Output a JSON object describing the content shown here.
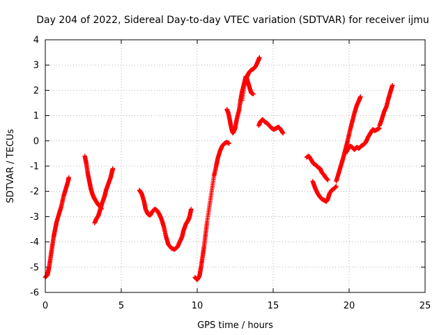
{
  "chart_data": {
    "type": "scatter",
    "title": "Day 204 of 2022, Sidereal Day-to-day VTEC variation (SDTVAR) for receiver ijmu",
    "xlabel": "GPS time / hours",
    "ylabel": "SDTVAR / TECUs",
    "xlim": [
      0,
      25
    ],
    "ylim": [
      -6,
      4
    ],
    "xticks": [
      0,
      5,
      10,
      15,
      20,
      25
    ],
    "yticks": [
      -6,
      -5,
      -4,
      -3,
      -2,
      -1,
      0,
      1,
      2,
      3,
      4
    ],
    "grid": true,
    "marker": "+",
    "color": "#ff0000",
    "series": [
      {
        "name": "ijmu",
        "segments": [
          [
            [
              0.0,
              -5.4
            ],
            [
              0.15,
              -5.3
            ],
            [
              0.25,
              -5.0
            ],
            [
              0.35,
              -4.6
            ],
            [
              0.45,
              -4.2
            ],
            [
              0.55,
              -3.8
            ],
            [
              0.65,
              -3.5
            ],
            [
              0.75,
              -3.2
            ],
            [
              0.9,
              -2.9
            ],
            [
              1.05,
              -2.6
            ],
            [
              1.2,
              -2.2
            ],
            [
              1.35,
              -1.9
            ],
            [
              1.5,
              -1.6
            ],
            [
              1.55,
              -1.45
            ]
          ],
          [
            [
              2.6,
              -0.6
            ],
            [
              2.7,
              -0.9
            ],
            [
              2.8,
              -1.3
            ],
            [
              2.9,
              -1.6
            ],
            [
              3.0,
              -1.9
            ],
            [
              3.1,
              -2.1
            ],
            [
              3.2,
              -2.25
            ],
            [
              3.3,
              -2.35
            ],
            [
              3.45,
              -2.5
            ],
            [
              3.6,
              -2.6
            ],
            [
              3.7,
              -2.7
            ]
          ],
          [
            [
              3.25,
              -3.25
            ],
            [
              3.35,
              -3.1
            ],
            [
              3.5,
              -2.95
            ],
            [
              3.6,
              -2.75
            ],
            [
              3.75,
              -2.45
            ],
            [
              3.9,
              -2.2
            ],
            [
              4.0,
              -1.95
            ],
            [
              4.15,
              -1.7
            ],
            [
              4.3,
              -1.45
            ],
            [
              4.4,
              -1.2
            ],
            [
              4.45,
              -1.1
            ]
          ],
          [
            [
              6.2,
              -1.95
            ],
            [
              6.35,
              -2.1
            ],
            [
              6.5,
              -2.4
            ],
            [
              6.6,
              -2.7
            ],
            [
              6.75,
              -2.9
            ],
            [
              6.9,
              -2.95
            ],
            [
              7.05,
              -2.8
            ],
            [
              7.2,
              -2.7
            ],
            [
              7.35,
              -2.75
            ],
            [
              7.5,
              -2.9
            ],
            [
              7.65,
              -3.1
            ],
            [
              7.8,
              -3.4
            ],
            [
              7.95,
              -3.8
            ],
            [
              8.1,
              -4.1
            ],
            [
              8.3,
              -4.25
            ],
            [
              8.5,
              -4.3
            ],
            [
              8.7,
              -4.2
            ],
            [
              8.85,
              -4.0
            ],
            [
              9.0,
              -3.8
            ],
            [
              9.1,
              -3.55
            ],
            [
              9.25,
              -3.3
            ],
            [
              9.4,
              -3.15
            ],
            [
              9.5,
              -3.0
            ],
            [
              9.6,
              -2.7
            ]
          ],
          [
            [
              9.85,
              -5.4
            ],
            [
              10.0,
              -5.5
            ],
            [
              10.15,
              -5.35
            ],
            [
              10.25,
              -5.0
            ],
            [
              10.35,
              -4.6
            ],
            [
              10.45,
              -4.2
            ],
            [
              10.55,
              -3.7
            ],
            [
              10.65,
              -3.2
            ],
            [
              10.8,
              -2.6
            ],
            [
              10.95,
              -2.0
            ],
            [
              11.1,
              -1.4
            ],
            [
              11.25,
              -1.0
            ],
            [
              11.35,
              -0.7
            ],
            [
              11.5,
              -0.4
            ],
            [
              11.65,
              -0.2
            ],
            [
              11.8,
              -0.1
            ],
            [
              11.95,
              -0.05
            ],
            [
              12.1,
              -0.1
            ]
          ],
          [
            [
              11.95,
              1.25
            ],
            [
              12.05,
              1.1
            ],
            [
              12.15,
              0.8
            ],
            [
              12.25,
              0.5
            ],
            [
              12.35,
              0.3
            ],
            [
              12.5,
              0.5
            ],
            [
              12.6,
              0.85
            ],
            [
              12.75,
              1.2
            ],
            [
              12.85,
              1.6
            ],
            [
              12.95,
              1.95
            ],
            [
              13.1,
              2.3
            ],
            [
              13.2,
              2.55
            ],
            [
              13.3,
              2.4
            ],
            [
              13.45,
              2.1
            ],
            [
              13.55,
              1.9
            ],
            [
              13.7,
              1.85
            ]
          ],
          [
            [
              12.95,
              1.6
            ],
            [
              13.1,
              2.2
            ],
            [
              13.25,
              2.5
            ],
            [
              13.4,
              2.7
            ],
            [
              13.55,
              2.8
            ],
            [
              13.7,
              2.85
            ],
            [
              13.85,
              2.95
            ],
            [
              14.0,
              3.15
            ],
            [
              14.1,
              3.3
            ]
          ],
          [
            [
              14.05,
              0.6
            ],
            [
              14.15,
              0.75
            ],
            [
              14.3,
              0.85
            ],
            [
              14.45,
              0.75
            ],
            [
              14.6,
              0.7
            ],
            [
              14.75,
              0.6
            ],
            [
              14.9,
              0.5
            ],
            [
              15.05,
              0.45
            ],
            [
              15.2,
              0.5
            ],
            [
              15.35,
              0.55
            ],
            [
              15.5,
              0.45
            ],
            [
              15.65,
              0.3
            ]
          ],
          [
            [
              17.2,
              -0.65
            ],
            [
              17.35,
              -0.6
            ],
            [
              17.5,
              -0.75
            ],
            [
              17.65,
              -0.9
            ],
            [
              17.8,
              -0.95
            ],
            [
              17.95,
              -1.05
            ],
            [
              18.1,
              -1.1
            ],
            [
              18.2,
              -1.25
            ],
            [
              18.35,
              -1.35
            ],
            [
              18.45,
              -1.45
            ],
            [
              18.6,
              -1.55
            ]
          ],
          [
            [
              17.6,
              -1.6
            ],
            [
              17.75,
              -1.85
            ],
            [
              17.9,
              -2.05
            ],
            [
              18.05,
              -2.2
            ],
            [
              18.2,
              -2.3
            ],
            [
              18.35,
              -2.35
            ],
            [
              18.5,
              -2.4
            ],
            [
              18.6,
              -2.3
            ],
            [
              18.7,
              -2.1
            ],
            [
              18.85,
              -1.95
            ],
            [
              19.0,
              -1.9
            ],
            [
              19.15,
              -1.8
            ]
          ],
          [
            [
              19.15,
              -1.6
            ],
            [
              19.3,
              -1.3
            ],
            [
              19.45,
              -1.0
            ],
            [
              19.6,
              -0.7
            ],
            [
              19.75,
              -0.35
            ],
            [
              19.9,
              0.0
            ],
            [
              20.05,
              0.4
            ],
            [
              20.2,
              0.75
            ],
            [
              20.35,
              1.1
            ],
            [
              20.5,
              1.4
            ],
            [
              20.65,
              1.6
            ],
            [
              20.75,
              1.75
            ]
          ],
          [
            [
              19.75,
              -0.5
            ],
            [
              19.9,
              -0.35
            ],
            [
              20.05,
              -0.2
            ],
            [
              20.2,
              -0.25
            ],
            [
              20.35,
              -0.35
            ],
            [
              20.5,
              -0.25
            ],
            [
              20.65,
              -0.3
            ],
            [
              20.8,
              -0.2
            ],
            [
              20.95,
              -0.15
            ],
            [
              21.1,
              -0.05
            ],
            [
              21.25,
              0.15
            ],
            [
              21.4,
              0.3
            ],
            [
              21.55,
              0.45
            ],
            [
              21.7,
              0.4
            ],
            [
              21.85,
              0.45
            ],
            [
              22.0,
              0.5
            ]
          ],
          [
            [
              22.0,
              0.6
            ],
            [
              22.15,
              0.85
            ],
            [
              22.3,
              1.15
            ],
            [
              22.45,
              1.35
            ],
            [
              22.6,
              1.7
            ],
            [
              22.75,
              2.0
            ],
            [
              22.85,
              2.2
            ]
          ]
        ]
      }
    ]
  }
}
